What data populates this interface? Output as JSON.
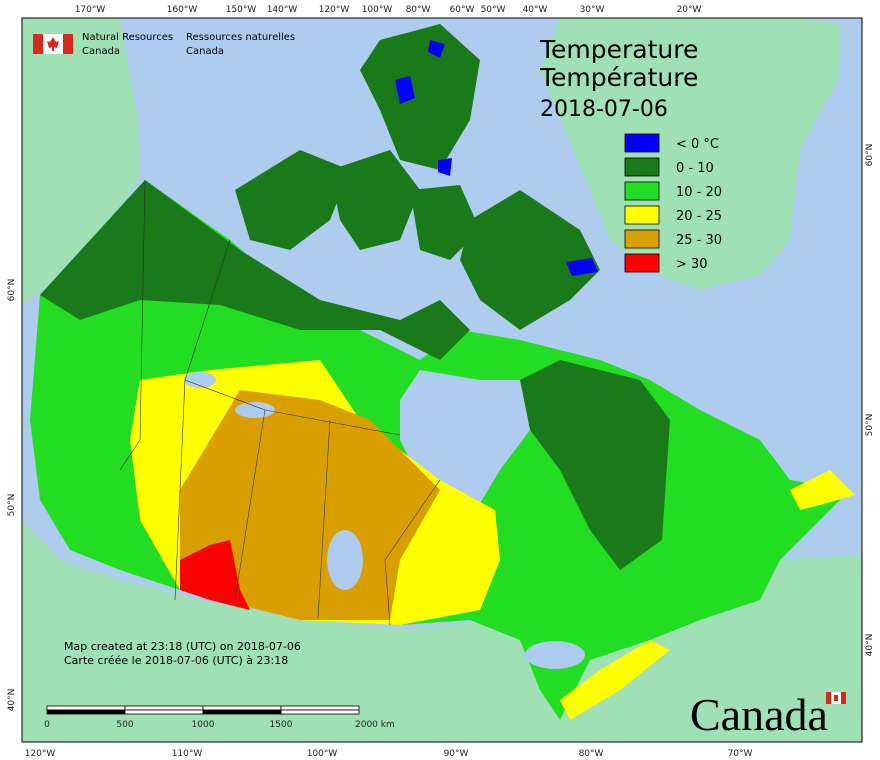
{
  "header": {
    "org_en_1": "Natural Resources",
    "org_en_2": "Canada",
    "org_fr_1": "Ressources naturelles",
    "org_fr_2": "Canada"
  },
  "title": {
    "line1": "Temperature",
    "line2": "Température",
    "date": "2018-07-06"
  },
  "legend": [
    {
      "label": "< 0 °C",
      "color": "#0000ff"
    },
    {
      "label": "0 - 10",
      "color": "#1a7a1a"
    },
    {
      "label": "10 - 20",
      "color": "#22dd22"
    },
    {
      "label": "20 - 25",
      "color": "#ffff00"
    },
    {
      "label": "25 - 30",
      "color": "#d99e00"
    },
    {
      "label": "> 30",
      "color": "#ff0000"
    }
  ],
  "axes": {
    "top": [
      "170°W",
      "160°W",
      "150°W",
      "140°W",
      "120°W",
      "100°W",
      "80°W",
      "60°W",
      "50°W",
      "40°W",
      "30°W",
      "20°W"
    ],
    "bottom": [
      "120°W",
      "110°W",
      "100°W",
      "90°W",
      "80°W",
      "70°W"
    ],
    "left": [
      "60°N",
      "50°N",
      "40°N"
    ],
    "right": [
      "60°N",
      "50°N",
      "40°N"
    ]
  },
  "scale_bar": {
    "labels": [
      "0",
      "500",
      "1000",
      "1500",
      "2000 km"
    ]
  },
  "footer": {
    "line1": "Map created at 23:18 (UTC) on 2018-07-06",
    "line2": "Carte créée le 2018-07-06 (UTC) à 23:18"
  },
  "wordmark": "Canada"
}
